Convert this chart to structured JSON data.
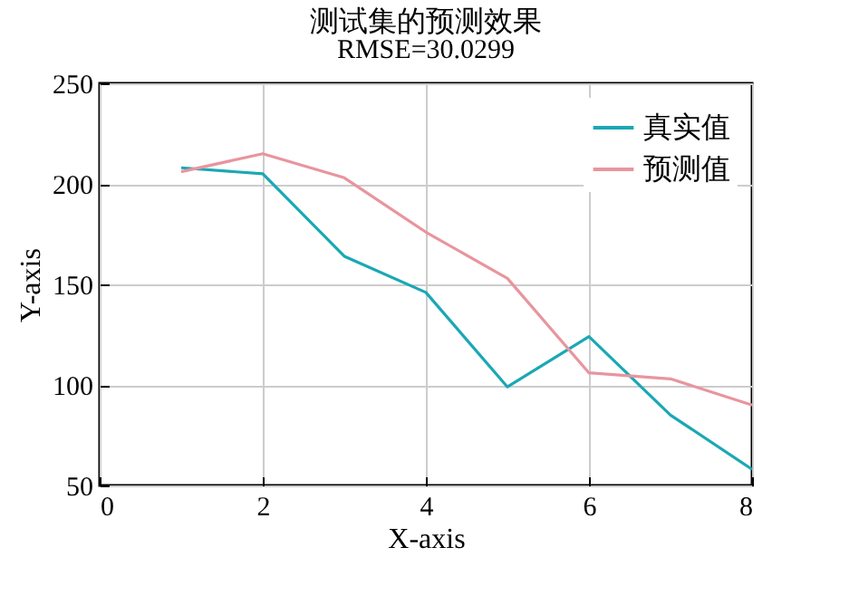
{
  "chart_data": {
    "type": "line",
    "title": "测试集的预测效果",
    "subtitle": "RMSE=30.0299",
    "xlabel": "X-axis",
    "ylabel": "Y-axis",
    "x": [
      1,
      2,
      3,
      4,
      5,
      6,
      7,
      8
    ],
    "series": [
      {
        "name": "真实值",
        "color": "#1aa8b4",
        "values": [
          208,
          205,
          164,
          146,
          99,
          124,
          85,
          58
        ]
      },
      {
        "name": "预测值",
        "color": "#e8959e",
        "values": [
          206,
          215,
          203,
          176,
          153,
          106,
          103,
          90
        ]
      }
    ],
    "xlim": [
      0,
      8
    ],
    "xticks": [
      0,
      2,
      4,
      6,
      8
    ],
    "ylim": [
      50,
      250
    ],
    "yticks": [
      50,
      100,
      150,
      200,
      250
    ],
    "grid": true,
    "legend": "top right"
  }
}
